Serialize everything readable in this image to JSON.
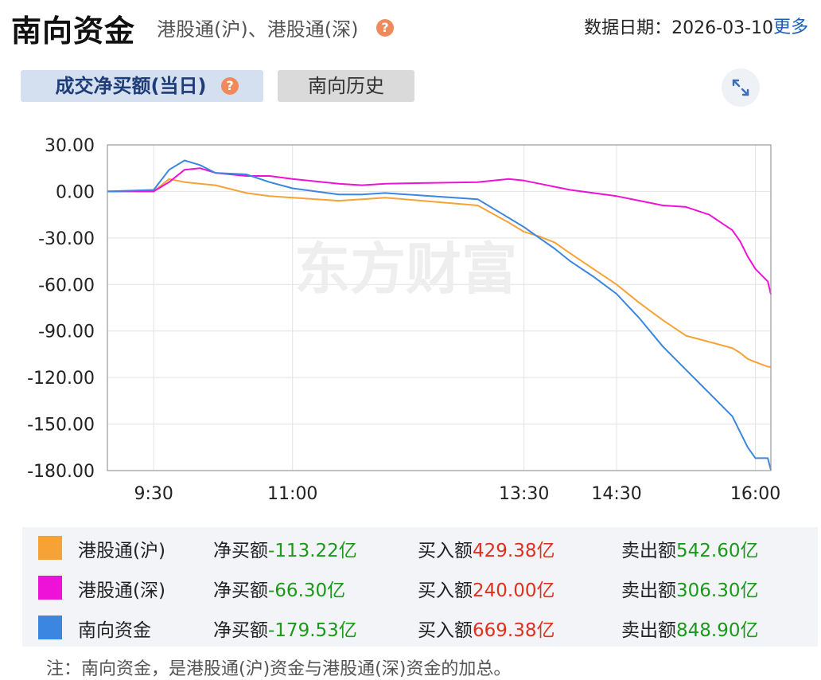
{
  "header": {
    "title": "南向资金",
    "subtitle": "港股通(沪)、港股通(深)",
    "date_label": "数据日期：2026-03-10",
    "more_label": "更多",
    "help_glyph": "?"
  },
  "tabs": [
    {
      "label": "成交净买额(当日)",
      "active": true
    },
    {
      "label": "南向历史",
      "active": false
    }
  ],
  "expand_icon": "expand-icon",
  "watermark": "东方财富",
  "colors": {
    "hk_sh": "#f7a235",
    "hk_sz": "#ee11d7",
    "southbound": "#3b86e0",
    "net_value": "#1a9a1a",
    "buy_value": "#e0301e",
    "tab_active_bg": "#d4e0f0",
    "tab_active_text": "#1d3c78"
  },
  "chart_data": {
    "type": "line",
    "ylim": [
      -180,
      30
    ],
    "yticks": [
      "30.00",
      "0.00",
      "-30.00",
      "-60.00",
      "-90.00",
      "-120.00",
      "-150.00",
      "-180.00"
    ],
    "xticks": [
      "9:30",
      "11:00",
      "13:30",
      "14:30",
      "16:00"
    ],
    "xlim": [
      "9:00",
      "16:10"
    ],
    "grid": true,
    "x": [
      "9:00",
      "9:30",
      "9:40",
      "9:50",
      "10:00",
      "10:10",
      "10:30",
      "10:45",
      "11:00",
      "11:30",
      "11:45",
      "12:00",
      "13:00",
      "13:20",
      "13:30",
      "13:40",
      "13:50",
      "14:00",
      "14:15",
      "14:30",
      "14:45",
      "15:00",
      "15:15",
      "15:30",
      "15:45",
      "15:50",
      "15:55",
      "16:00",
      "16:08",
      "16:10"
    ],
    "series": [
      {
        "name": "港股通(沪)",
        "color": "#f7a235",
        "values": [
          0,
          0,
          8,
          6,
          5,
          4,
          -1,
          -3,
          -4,
          -6,
          -5,
          -4,
          -9,
          -20,
          -26,
          -29,
          -33,
          -40,
          -50,
          -60,
          -72,
          -83,
          -93,
          -97,
          -101,
          -104,
          -108,
          -110,
          -113,
          -113.22
        ]
      },
      {
        "name": "港股通(深)",
        "color": "#ee11d7",
        "values": [
          0,
          0,
          6,
          14,
          15,
          12,
          10,
          10,
          8,
          5,
          4,
          5,
          6,
          8,
          7,
          5,
          3,
          1,
          -1,
          -3,
          -6,
          -9,
          -10,
          -15,
          -25,
          -32,
          -42,
          -50,
          -58,
          -66.3
        ]
      },
      {
        "name": "南向资金",
        "color": "#3b86e0",
        "values": [
          0,
          1,
          14,
          20,
          17,
          12,
          11,
          6,
          2,
          -2,
          -2,
          -1,
          -5,
          -17,
          -23,
          -30,
          -37,
          -45,
          -55,
          -66,
          -82,
          -100,
          -115,
          -130,
          -145,
          -155,
          -165,
          -172,
          -172,
          -179.53
        ]
      }
    ]
  },
  "legend": [
    {
      "name": "港股通(沪)",
      "net_label": "净买额",
      "net_value": "-113.22亿",
      "buy_label": "买入额",
      "buy_value": "429.38亿",
      "sell_label": "卖出额",
      "sell_value": "542.60亿"
    },
    {
      "name": "港股通(深)",
      "net_label": "净买额",
      "net_value": "-66.30亿",
      "buy_label": "买入额",
      "buy_value": "240.00亿",
      "sell_label": "卖出额",
      "sell_value": "306.30亿"
    },
    {
      "name": "南向资金",
      "net_label": "净买额",
      "net_value": "-179.53亿",
      "buy_label": "买入额",
      "buy_value": "669.38亿",
      "sell_label": "卖出额",
      "sell_value": "848.90亿"
    }
  ],
  "note": "注：南向资金，是港股通(沪)资金与港股通(深)资金的加总。"
}
